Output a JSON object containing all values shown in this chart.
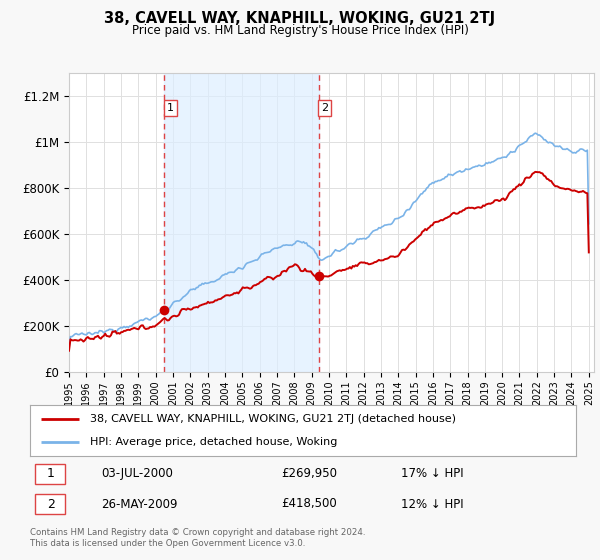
{
  "title": "38, CAVELL WAY, KNAPHILL, WOKING, GU21 2TJ",
  "subtitle": "Price paid vs. HM Land Registry's House Price Index (HPI)",
  "ytick_values": [
    0,
    200000,
    400000,
    600000,
    800000,
    1000000,
    1200000
  ],
  "ylim": [
    0,
    1300000
  ],
  "sale1_date": "03-JUL-2000",
  "sale1_price": 269950,
  "sale1_pct": "17%",
  "sale2_date": "26-MAY-2009",
  "sale2_price": 418500,
  "sale2_pct": "12%",
  "sale1_x": 2000.5,
  "sale2_x": 2009.4,
  "legend_line1": "38, CAVELL WAY, KNAPHILL, WOKING, GU21 2TJ (detached house)",
  "legend_line2": "HPI: Average price, detached house, Woking",
  "footnote": "Contains HM Land Registry data © Crown copyright and database right 2024.\nThis data is licensed under the Open Government Licence v3.0.",
  "hpi_color": "#7ab3e8",
  "sold_color": "#cc0000",
  "vline_color": "#dd4444",
  "shade_color": "#ddeeff",
  "background_color": "#f8f8f8",
  "plot_bg_color": "#ffffff",
  "grid_color": "#e0e0e0"
}
